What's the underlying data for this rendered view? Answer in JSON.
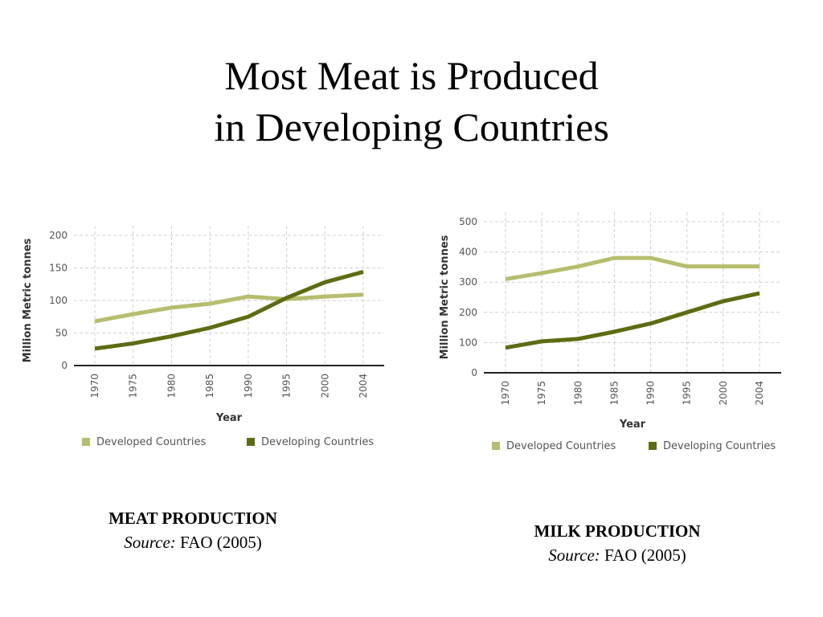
{
  "page": {
    "title_line1": "Most Meat is Produced",
    "title_line2": "in Developing Countries"
  },
  "colors": {
    "developed": "#b7bd6e",
    "developing": "#5e6b12",
    "grid": "#cfcfcf",
    "axis": "#222222"
  },
  "captions": [
    {
      "title": "MEAT PRODUCTION",
      "source_label": "Source:",
      "source": " FAO (2005)"
    },
    {
      "title": "MILK PRODUCTION",
      "source_label": "Source:",
      "source": " FAO (2005)"
    }
  ],
  "chart_data": [
    {
      "type": "line",
      "title": "MEAT PRODUCTION",
      "xlabel": "Year",
      "ylabel": "Million Metric tonnes",
      "categories": [
        "1970",
        "1975",
        "1980",
        "1985",
        "1990",
        "1995",
        "2000",
        "2004"
      ],
      "yticks": [
        0,
        50,
        100,
        150,
        200
      ],
      "ylim": [
        0,
        200
      ],
      "grid": true,
      "legend_position": "bottom",
      "series": [
        {
          "name": "Developed Countries",
          "values": [
            68,
            79,
            89,
            95,
            106,
            102,
            106,
            109
          ]
        },
        {
          "name": "Developing Countries",
          "values": [
            26,
            34,
            45,
            58,
            75,
            104,
            128,
            144
          ]
        }
      ]
    },
    {
      "type": "line",
      "title": "MILK PRODUCTION",
      "xlabel": "Year",
      "ylabel": "Million Metric tonnes",
      "categories": [
        "1970",
        "1975",
        "1980",
        "1985",
        "1990",
        "1995",
        "2000",
        "2004"
      ],
      "yticks": [
        0,
        100,
        200,
        300,
        400,
        500
      ],
      "ylim": [
        0,
        500
      ],
      "grid": true,
      "legend_position": "bottom",
      "series": [
        {
          "name": "Developed Countries",
          "values": [
            310,
            330,
            352,
            380,
            380,
            352,
            352,
            352
          ]
        },
        {
          "name": "Developing Countries",
          "values": [
            83,
            104,
            112,
            136,
            163,
            200,
            237,
            263
          ]
        }
      ]
    }
  ]
}
